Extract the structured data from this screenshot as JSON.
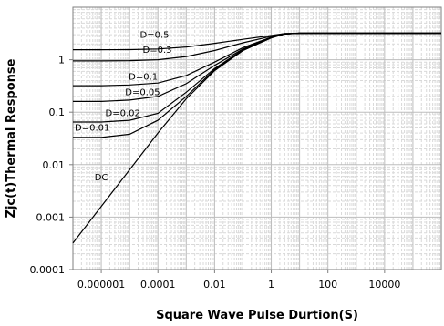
{
  "chart_data": {
    "type": "line",
    "title": "",
    "xlabel": "Square Wave Pulse Durtion(S)",
    "ylabel": "Zjc(t)Thermal Response",
    "x_scale": "log",
    "y_scale": "log",
    "xlim": [
      1e-07,
      1000000
    ],
    "ylim": [
      0.0001,
      10
    ],
    "x_ticks": [
      "0.000001",
      "0.0001",
      "0.01",
      "1",
      "100",
      "10000"
    ],
    "y_ticks": [
      "0.0001",
      "0.001",
      "0.01",
      "0.1",
      "1"
    ],
    "grid": true,
    "legend": "none",
    "line_color": "#000000",
    "series": [
      {
        "name": "D=0.5",
        "points": [
          [
            1e-07,
            1.55
          ],
          [
            1e-06,
            1.55
          ],
          [
            1e-05,
            1.56
          ],
          [
            0.0001,
            1.6
          ],
          [
            0.001,
            1.75
          ],
          [
            0.01,
            2.05
          ],
          [
            0.1,
            2.45
          ],
          [
            1,
            2.9
          ],
          [
            3,
            3.15
          ],
          [
            10,
            3.2
          ],
          [
            100,
            3.2
          ],
          [
            1000000,
            3.2
          ]
        ]
      },
      {
        "name": "D=0.3",
        "points": [
          [
            1e-07,
            0.95
          ],
          [
            1e-06,
            0.95
          ],
          [
            1e-05,
            0.96
          ],
          [
            0.0001,
            1.0
          ],
          [
            0.001,
            1.15
          ],
          [
            0.01,
            1.5
          ],
          [
            0.1,
            2.1
          ],
          [
            1,
            2.8
          ],
          [
            3,
            3.15
          ],
          [
            10,
            3.2
          ],
          [
            100,
            3.2
          ],
          [
            1000000,
            3.2
          ]
        ]
      },
      {
        "name": "D=0.1",
        "points": [
          [
            1e-07,
            0.32
          ],
          [
            1e-06,
            0.32
          ],
          [
            1e-05,
            0.33
          ],
          [
            0.0001,
            0.36
          ],
          [
            0.001,
            0.5
          ],
          [
            0.01,
            0.9
          ],
          [
            0.1,
            1.7
          ],
          [
            1,
            2.7
          ],
          [
            3,
            3.1
          ],
          [
            10,
            3.2
          ],
          [
            100,
            3.2
          ],
          [
            1000000,
            3.2
          ]
        ]
      },
      {
        "name": "D=0.05",
        "points": [
          [
            1e-07,
            0.16
          ],
          [
            1e-06,
            0.16
          ],
          [
            1e-05,
            0.17
          ],
          [
            0.0001,
            0.2
          ],
          [
            0.001,
            0.35
          ],
          [
            0.01,
            0.78
          ],
          [
            0.1,
            1.6
          ],
          [
            1,
            2.7
          ],
          [
            3,
            3.1
          ],
          [
            10,
            3.2
          ],
          [
            100,
            3.2
          ],
          [
            1000000,
            3.2
          ]
        ]
      },
      {
        "name": "D=0.02",
        "points": [
          [
            1e-07,
            0.065
          ],
          [
            1e-06,
            0.065
          ],
          [
            1e-05,
            0.07
          ],
          [
            0.0001,
            0.095
          ],
          [
            0.001,
            0.24
          ],
          [
            0.01,
            0.68
          ],
          [
            0.1,
            1.55
          ],
          [
            1,
            2.65
          ],
          [
            3,
            3.1
          ],
          [
            10,
            3.2
          ],
          [
            100,
            3.2
          ],
          [
            1000000,
            3.2
          ]
        ]
      },
      {
        "name": "D=0.01",
        "points": [
          [
            1e-07,
            0.033
          ],
          [
            1e-06,
            0.033
          ],
          [
            1e-05,
            0.038
          ],
          [
            0.0001,
            0.07
          ],
          [
            0.001,
            0.2
          ],
          [
            0.01,
            0.65
          ],
          [
            0.1,
            1.5
          ],
          [
            1,
            2.65
          ],
          [
            3,
            3.1
          ],
          [
            10,
            3.2
          ],
          [
            100,
            3.2
          ],
          [
            1000000,
            3.2
          ]
        ]
      },
      {
        "name": "DC",
        "points": [
          [
            1e-07,
            0.00032
          ],
          [
            1e-06,
            0.0016
          ],
          [
            1e-05,
            0.008
          ],
          [
            0.0001,
            0.04
          ],
          [
            0.001,
            0.18
          ],
          [
            0.01,
            0.62
          ],
          [
            0.1,
            1.5
          ],
          [
            1,
            2.6
          ],
          [
            3,
            3.1
          ],
          [
            10,
            3.2
          ],
          [
            100,
            3.2
          ],
          [
            1000000,
            3.2
          ]
        ]
      }
    ],
    "annotations": [
      {
        "text": "D=0.5",
        "series": "D=0.5",
        "x": 2e-05,
        "y": 2.6
      },
      {
        "text": "D=0.3",
        "series": "D=0.3",
        "x": 2.5e-05,
        "y": 1.35
      },
      {
        "text": "D=0.1",
        "series": "D=0.1",
        "x": 8e-06,
        "y": 0.42
      },
      {
        "text": "D=0.05",
        "series": "D=0.05",
        "x": 6e-06,
        "y": 0.21
      },
      {
        "text": "D=0.02",
        "series": "D=0.02",
        "x": 1.2e-06,
        "y": 0.085
      },
      {
        "text": "D=0.01",
        "series": "D=0.01",
        "x": 1e-07,
        "y": 0.044
      },
      {
        "text": "DC",
        "series": "DC",
        "x": 5e-07,
        "y": 0.005
      }
    ]
  }
}
